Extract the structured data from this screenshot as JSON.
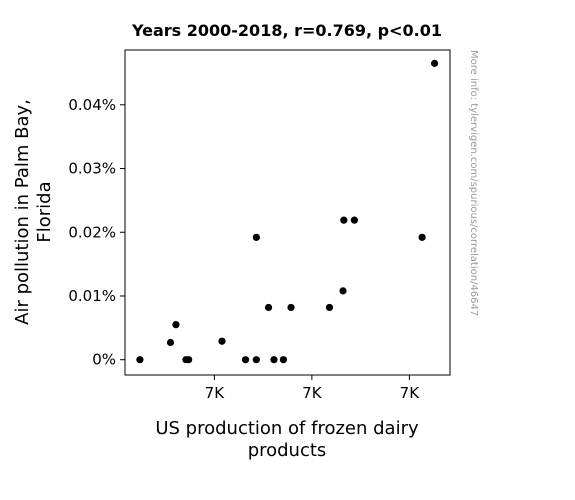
{
  "chart_data": {
    "type": "scatter",
    "title": "Years 2000-2018, r=0.769, p<0.01",
    "xlabel": [
      "US production of frozen dairy",
      "products"
    ],
    "ylabel": [
      "Air pollution in Palm Bay,",
      "Florida"
    ],
    "xlim": [
      6270,
      7470
    ],
    "ylim": [
      -0.0024,
      0.0486
    ],
    "x_ticks": [
      {
        "value": 6600,
        "label": "7K"
      },
      {
        "value": 6960,
        "label": "7K"
      },
      {
        "value": 7320,
        "label": "7K"
      }
    ],
    "y_ticks": [
      {
        "value": 0.0,
        "label": "0%"
      },
      {
        "value": 0.01,
        "label": "0.01%"
      },
      {
        "value": 0.02,
        "label": "0.02%"
      },
      {
        "value": 0.03,
        "label": "0.03%"
      },
      {
        "value": 0.04,
        "label": "0.04%"
      }
    ],
    "points": [
      {
        "x": 6325,
        "y": 0.0
      },
      {
        "x": 6438,
        "y": 0.0027
      },
      {
        "x": 6458,
        "y": 0.0055
      },
      {
        "x": 6495,
        "y": 0.0
      },
      {
        "x": 6505,
        "y": 0.0
      },
      {
        "x": 6628,
        "y": 0.0029
      },
      {
        "x": 6715,
        "y": 0.0
      },
      {
        "x": 6755,
        "y": 0.0192
      },
      {
        "x": 6755,
        "y": 0.0
      },
      {
        "x": 6800,
        "y": 0.0082
      },
      {
        "x": 6820,
        "y": 0.0
      },
      {
        "x": 6855,
        "y": 0.0
      },
      {
        "x": 6883,
        "y": 0.0082
      },
      {
        "x": 7025,
        "y": 0.0082
      },
      {
        "x": 7075,
        "y": 0.0108
      },
      {
        "x": 7078,
        "y": 0.0219
      },
      {
        "x": 7117,
        "y": 0.0219
      },
      {
        "x": 7367,
        "y": 0.0192
      },
      {
        "x": 7413,
        "y": 0.0465
      }
    ],
    "marker_color": "#000000",
    "grid": false
  },
  "watermark": "More info: tylervigen.com/spurious/correlation/46647"
}
